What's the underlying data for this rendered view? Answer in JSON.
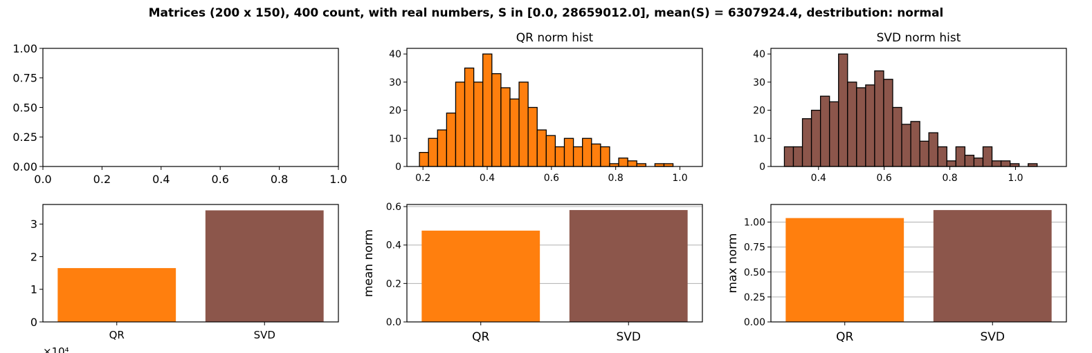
{
  "suptitle": "Matrices (200 x 150), 400 count, with real numbers, S in [0.0, 28659012.0], mean(S) = 6307924.4, destribution: normal",
  "colors": {
    "qr": "#ff7f0e",
    "svd": "#8c564b",
    "grid": "#b0b0b0"
  },
  "chart_data": [
    {
      "type": "empty",
      "title": "",
      "xlim": [
        0,
        1
      ],
      "ylim": [
        0,
        1
      ],
      "xticks": [
        "0.0",
        "0.2",
        "0.4",
        "0.6",
        "0.8",
        "1.0"
      ],
      "yticks": [
        "0.00",
        "0.25",
        "0.50",
        "0.75",
        "1.00"
      ]
    },
    {
      "type": "bar",
      "title": "QR norm hist",
      "bin_start": 0.189,
      "bin_width": 0.0282,
      "counts": [
        5,
        10,
        13,
        19,
        30,
        35,
        30,
        40,
        33,
        28,
        24,
        30,
        21,
        13,
        11,
        7,
        10,
        7,
        10,
        8,
        7,
        1,
        3,
        2,
        1,
        0,
        1,
        1
      ],
      "xlim": [
        0.15,
        1.07
      ],
      "ylim": [
        0,
        42
      ],
      "xticks": [
        "0.2",
        "0.4",
        "0.6",
        "0.8",
        "1.0"
      ],
      "yticks": [
        "0",
        "10",
        "20",
        "30",
        "40"
      ]
    },
    {
      "type": "bar",
      "title": "SVD norm hist",
      "bin_start": 0.296,
      "bin_width": 0.0275,
      "counts": [
        7,
        7,
        17,
        20,
        25,
        23,
        40,
        30,
        28,
        29,
        34,
        31,
        21,
        15,
        16,
        9,
        12,
        7,
        2,
        7,
        4,
        3,
        7,
        2,
        2,
        1,
        0,
        1
      ],
      "xlim": [
        0.255,
        1.155
      ],
      "ylim": [
        0,
        42
      ],
      "xticks": [
        "0.4",
        "0.6",
        "0.8",
        "1.0"
      ],
      "yticks": [
        "0",
        "10",
        "20",
        "30",
        "40"
      ]
    },
    {
      "type": "bar",
      "title": "",
      "categories": [
        "QR",
        "SVD"
      ],
      "values": [
        16500,
        34200
      ],
      "ylim": [
        0,
        36000
      ],
      "yticks": [
        "0",
        "1",
        "2",
        "3"
      ],
      "scale_label": "×10⁴",
      "ylabel": "",
      "grid": false
    },
    {
      "type": "bar",
      "title": "",
      "categories": [
        "QR",
        "SVD"
      ],
      "values": [
        0.475,
        0.582
      ],
      "ylim": [
        0,
        0.611
      ],
      "yticks": [
        "0.0",
        "0.2",
        "0.4",
        "0.6"
      ],
      "ylabel": "mean norm",
      "grid": true
    },
    {
      "type": "bar",
      "title": "",
      "categories": [
        "QR",
        "SVD"
      ],
      "values": [
        1.04,
        1.12
      ],
      "ylim": [
        0,
        1.176
      ],
      "yticks": [
        "0.00",
        "0.25",
        "0.50",
        "0.75",
        "1.00"
      ],
      "ylabel": "max norm",
      "grid": true
    }
  ]
}
